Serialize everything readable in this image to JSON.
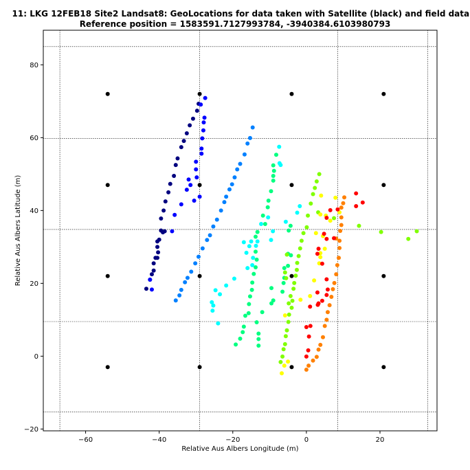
{
  "chart_data": {
    "type": "scatter",
    "title_line1": "11: LKG 12FEB18 Site2 Landsat8: GeoLocations for data taken with Satellite (black) and field data (colour)",
    "title_line2": "Reference position = 1583591.7127993784, -3940384.6103980793",
    "xlabel": "Relative Aus Albers Longitude (m)",
    "ylabel": "Relative Aus Albers Latitude (m)",
    "xlim": [
      -71.5,
      35.5
    ],
    "ylim": [
      -20.5,
      89.5
    ],
    "xticks": [
      -60,
      -40,
      -20,
      0,
      20
    ],
    "yticks": [
      -20,
      0,
      20,
      40,
      60,
      80
    ],
    "xtick_labels": [
      "−60",
      "−40",
      "−20",
      "0",
      "20"
    ],
    "ytick_labels": [
      "−20",
      "0",
      "20",
      "40",
      "60",
      "80"
    ],
    "grid_x": [
      -67,
      -29,
      8.5,
      33
    ],
    "grid_y": [
      85,
      34.8,
      9.5,
      -15.3,
      59.8
    ],
    "satellite_points": [
      [
        -54,
        72
      ],
      [
        -29,
        72
      ],
      [
        -4,
        72
      ],
      [
        21,
        72
      ],
      [
        -54,
        47
      ],
      [
        -29,
        47
      ],
      [
        -4,
        47
      ],
      [
        21,
        47
      ],
      [
        -54,
        22
      ],
      [
        -29,
        22
      ],
      [
        -4,
        22
      ],
      [
        21,
        22
      ],
      [
        -54,
        -3
      ],
      [
        -29,
        -3
      ],
      [
        -4,
        -3
      ],
      [
        21,
        -3
      ]
    ],
    "field_series": [
      {
        "color": "#00007f",
        "points": [
          [
            -43.5,
            18.5
          ],
          [
            -42.5,
            21
          ],
          [
            -42,
            22.5
          ],
          [
            -41.5,
            23.5
          ],
          [
            -41.5,
            25.5
          ],
          [
            -41,
            27
          ],
          [
            -40.5,
            27
          ],
          [
            -40.3,
            28.5
          ],
          [
            -40.5,
            30
          ],
          [
            -40.5,
            31.5
          ],
          [
            -40,
            32
          ],
          [
            -39.5,
            34.5
          ],
          [
            -39,
            34
          ],
          [
            -38.5,
            34.3
          ],
          [
            -39.5,
            37.8
          ],
          [
            -38.8,
            40
          ],
          [
            -38.3,
            42.5
          ],
          [
            -37.5,
            45
          ],
          [
            -37,
            47.3
          ],
          [
            -36,
            49.5
          ],
          [
            -35.5,
            52.5
          ],
          [
            -35,
            54.3
          ],
          [
            -34,
            57.4
          ],
          [
            -33.3,
            59.1
          ],
          [
            -32.5,
            61.2
          ],
          [
            -31.7,
            63.4
          ],
          [
            -30.8,
            65.2
          ],
          [
            -29.7,
            67.4
          ],
          [
            -29.3,
            69.3
          ]
        ]
      },
      {
        "color": "#0000ff",
        "points": [
          [
            -42.5,
            21
          ],
          [
            -42,
            18.3
          ],
          [
            -36.5,
            34.3
          ],
          [
            -35.8,
            38.8
          ],
          [
            -34,
            41.7
          ],
          [
            -32.5,
            45.7
          ],
          [
            -32,
            48.5
          ],
          [
            -31.5,
            47
          ],
          [
            -30.5,
            42.7
          ],
          [
            -30,
            51.3
          ],
          [
            -30,
            53.4
          ],
          [
            -29.8,
            49.1
          ],
          [
            -29,
            43.8
          ],
          [
            -28.5,
            55.6
          ],
          [
            -28.5,
            57
          ],
          [
            -28.3,
            59.8
          ],
          [
            -28,
            62
          ],
          [
            -27.9,
            64.2
          ],
          [
            -27.7,
            65.5
          ],
          [
            -27.5,
            70.9
          ],
          [
            -28.7,
            69.1
          ]
        ]
      },
      {
        "color": "#0080ff",
        "points": [
          [
            -35.5,
            15.3
          ],
          [
            -34.5,
            16.7
          ],
          [
            -34,
            18.2
          ],
          [
            -33,
            20.3
          ],
          [
            -32.3,
            21.5
          ],
          [
            -31.3,
            23.2
          ],
          [
            -30.2,
            25.5
          ],
          [
            -29.3,
            27.3
          ],
          [
            -28.2,
            29.6
          ],
          [
            -27,
            31.9
          ],
          [
            -26.2,
            33.2
          ],
          [
            -25.3,
            35.6
          ],
          [
            -24.3,
            37.5
          ],
          [
            -23.2,
            40
          ],
          [
            -22.3,
            42.3
          ],
          [
            -21.8,
            43.8
          ],
          [
            -20.9,
            45.8
          ],
          [
            -20.2,
            47.2
          ],
          [
            -19.5,
            49.1
          ],
          [
            -18.8,
            51.3
          ],
          [
            -18,
            52.8
          ],
          [
            -16.8,
            55.4
          ],
          [
            -16,
            58.4
          ],
          [
            -15.3,
            59.9
          ],
          [
            -14.6,
            62.8
          ]
        ]
      },
      {
        "color": "#00ffff",
        "points": [
          [
            -25.7,
            14.8
          ],
          [
            -25.3,
            13.9
          ],
          [
            -25.5,
            12.5
          ],
          [
            -24.7,
            18.1
          ],
          [
            -24,
            9
          ],
          [
            -23.5,
            17
          ],
          [
            -21.8,
            19.4
          ],
          [
            -19.6,
            21.3
          ],
          [
            -17,
            31.3
          ],
          [
            -16.3,
            28.4
          ],
          [
            -16,
            24.2
          ],
          [
            -15.5,
            30.2
          ],
          [
            -15,
            31.5
          ],
          [
            -14.7,
            25
          ],
          [
            -14.5,
            27
          ],
          [
            -13.7,
            30.3
          ],
          [
            -13.3,
            31.5
          ],
          [
            -12.3,
            36.3
          ],
          [
            -10.4,
            38.1
          ],
          [
            -9.6,
            31.9
          ],
          [
            -9.1,
            34.3
          ],
          [
            -7.4,
            57.5
          ],
          [
            -7.3,
            53
          ],
          [
            -7,
            52.5
          ],
          [
            -5.6,
            36.9
          ],
          [
            -2.5,
            39.4
          ],
          [
            -1.8,
            41.2
          ]
        ]
      },
      {
        "color": "#00ff80",
        "points": [
          [
            -19.2,
            3.2
          ],
          [
            -18,
            4.8
          ],
          [
            -17.3,
            6.6
          ],
          [
            -17,
            8.1
          ],
          [
            -16.6,
            11.1
          ],
          [
            -15.7,
            11.8
          ],
          [
            -15.6,
            14.3
          ],
          [
            -15.3,
            16.4
          ],
          [
            -14.8,
            18.2
          ],
          [
            -14.7,
            20.2
          ],
          [
            -14.3,
            22.6
          ],
          [
            -13.8,
            24.4
          ],
          [
            -13.5,
            26.5
          ],
          [
            -13.8,
            28.7
          ],
          [
            -13.8,
            32.8
          ],
          [
            -13.3,
            34.1
          ],
          [
            -11.8,
            38.6
          ],
          [
            -11.2,
            36.3
          ],
          [
            -10.5,
            40.9
          ],
          [
            -10.3,
            42.7
          ],
          [
            -9.6,
            45.3
          ],
          [
            -9,
            48.2
          ],
          [
            -9,
            49.5
          ],
          [
            -8.8,
            50.9
          ],
          [
            -9,
            52.4
          ],
          [
            -8.2,
            55.3
          ],
          [
            -12,
            12.1
          ],
          [
            -9,
            15.3
          ],
          [
            -9.5,
            14.5
          ],
          [
            -9.5,
            18.7
          ],
          [
            -6,
            24.2
          ],
          [
            -5,
            24.8
          ],
          [
            -6,
            21.5
          ],
          [
            -6.2,
            20.1
          ],
          [
            -6.5,
            17.7
          ],
          [
            -4.8,
            34.5
          ],
          [
            -4.3,
            35.8
          ],
          [
            -5,
            28.1
          ],
          [
            -4.2,
            27.7
          ],
          [
            -13.5,
            9.3
          ],
          [
            -13,
            6.2
          ],
          [
            -13,
            4.7
          ],
          [
            -13,
            2.9
          ]
        ]
      },
      {
        "color": "#80ff00",
        "points": [
          [
            -5.8,
            23
          ],
          [
            -5.5,
            21.4
          ],
          [
            -4.3,
            16.5
          ],
          [
            -4.8,
            14.5
          ],
          [
            -3.8,
            15.2
          ],
          [
            -3.5,
            18.5
          ],
          [
            -3.3,
            20.1
          ],
          [
            -2.9,
            22.1
          ],
          [
            -2.6,
            23.7
          ],
          [
            -2.5,
            25.6
          ],
          [
            -2.1,
            27.5
          ],
          [
            -1.7,
            29.6
          ],
          [
            -1.3,
            31.7
          ],
          [
            -0.8,
            33.8
          ],
          [
            0.1,
            35.4
          ],
          [
            0.4,
            38.6
          ],
          [
            1.2,
            41.9
          ],
          [
            1.8,
            44.5
          ],
          [
            2.3,
            46.2
          ],
          [
            2.8,
            48
          ],
          [
            3.5,
            50
          ],
          [
            3.2,
            39.5
          ],
          [
            14.3,
            35.8
          ],
          [
            20.3,
            34.1
          ],
          [
            27.7,
            32.2
          ],
          [
            30,
            34.3
          ],
          [
            -6.5,
            -0.1
          ],
          [
            -6.2,
            1.9
          ],
          [
            -5.8,
            3.3
          ],
          [
            -5.6,
            5.5
          ],
          [
            -5.3,
            7.1
          ],
          [
            -4.9,
            9.4
          ],
          [
            -4.7,
            11.4
          ],
          [
            -7,
            -1.6
          ],
          [
            -4,
            13.3
          ],
          [
            7.5,
            37.9
          ],
          [
            -5.3,
            27.9
          ]
        ]
      },
      {
        "color": "#ffff00",
        "points": [
          [
            -6.7,
            -4.7
          ],
          [
            -6,
            -2.6
          ],
          [
            -5,
            -1.5
          ],
          [
            -5.8,
            11.2
          ],
          [
            -1.6,
            15.5
          ],
          [
            1,
            16.5
          ],
          [
            2.1,
            20.8
          ],
          [
            2.6,
            33.8
          ],
          [
            3.5,
            25.5
          ],
          [
            3.8,
            27.2
          ],
          [
            3.8,
            38.9
          ],
          [
            4,
            44.1
          ],
          [
            4.5,
            33
          ],
          [
            5,
            29.5
          ],
          [
            5.3,
            38.6
          ],
          [
            6.5,
            37.2
          ],
          [
            7.9,
            43.5
          ],
          [
            9,
            39.5
          ],
          [
            3.8,
            28.3
          ]
        ]
      },
      {
        "color": "#ff8000",
        "points": [
          [
            0,
            -3.7
          ],
          [
            0.6,
            -2.6
          ],
          [
            1.8,
            -1.2
          ],
          [
            2.8,
            -0.2
          ],
          [
            3.3,
            1.8
          ],
          [
            3.8,
            3.1
          ],
          [
            4.5,
            5.2
          ],
          [
            5,
            8.3
          ],
          [
            5.5,
            10
          ],
          [
            5.8,
            12.1
          ],
          [
            6.3,
            14
          ],
          [
            6.8,
            16.3
          ],
          [
            7.2,
            18.4
          ],
          [
            7.6,
            20.1
          ],
          [
            8.1,
            22.5
          ],
          [
            8.4,
            25
          ],
          [
            8.8,
            27
          ],
          [
            9,
            29.7
          ],
          [
            9,
            31.7
          ],
          [
            9.2,
            34.4
          ],
          [
            9.5,
            36
          ],
          [
            9.5,
            38.1
          ],
          [
            9.5,
            40.8
          ],
          [
            10,
            42
          ],
          [
            10.3,
            43.6
          ],
          [
            8.1,
            32.3
          ]
        ]
      },
      {
        "color": "#ff0000",
        "points": [
          [
            0,
            -0.1
          ],
          [
            0.5,
            1.6
          ],
          [
            0.7,
            5.4
          ],
          [
            1.1,
            8.3
          ],
          [
            1,
            13.6
          ],
          [
            3.1,
            14.1
          ],
          [
            3,
            17.5
          ],
          [
            3.3,
            14.5
          ],
          [
            4.3,
            15.2
          ],
          [
            5.5,
            16.8
          ],
          [
            5.5,
            21.1
          ],
          [
            5.8,
            18.3
          ],
          [
            3,
            28.1
          ],
          [
            3.3,
            29.5
          ],
          [
            4.3,
            25.4
          ],
          [
            4.8,
            33.6
          ],
          [
            5.5,
            32.2
          ],
          [
            5.5,
            38
          ],
          [
            6.5,
            40.1
          ],
          [
            7.5,
            32.4
          ],
          [
            8.5,
            40.3
          ],
          [
            13.5,
            41.2
          ],
          [
            13.5,
            44.7
          ],
          [
            15.3,
            42.2
          ],
          [
            0,
            8
          ]
        ]
      }
    ]
  }
}
